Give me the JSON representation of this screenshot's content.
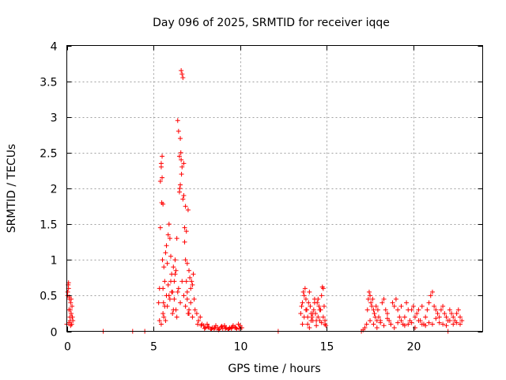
{
  "chart_data": {
    "type": "scatter",
    "title": "Day 096 of 2025, SRMTID for receiver iqqe",
    "xlabel": "GPS time / hours",
    "ylabel": "SRMTID / TECUs",
    "xlim": [
      0,
      24
    ],
    "ylim": [
      0,
      4
    ],
    "xticks": [
      0,
      5,
      10,
      15,
      20
    ],
    "yticks": [
      0,
      0.5,
      1,
      1.5,
      2,
      2.5,
      3,
      3.5,
      4
    ],
    "xtick_labels": [
      "0",
      "5",
      "10",
      "15",
      "20"
    ],
    "ytick_labels": [
      "0",
      "0.5",
      "1",
      "1.5",
      "2",
      "2.5",
      "3",
      "3.5",
      "4"
    ],
    "grid": true,
    "marker": "+",
    "color": "#ff0000",
    "series": [
      {
        "name": "SRMTID",
        "x": [
          0.0,
          0.05,
          0.08,
          0.1,
          0.12,
          0.15,
          0.18,
          0.2,
          0.22,
          0.25,
          0.28,
          0.3,
          0.32,
          0.35,
          0.05,
          0.1,
          0.15,
          0.2,
          0.25,
          0.3,
          0.12,
          0.22,
          2.1,
          3.8,
          4.5,
          5.3,
          5.35,
          5.4,
          5.45,
          5.5,
          5.55,
          5.6,
          5.65,
          5.7,
          5.75,
          5.8,
          5.85,
          5.9,
          5.95,
          6.0,
          6.05,
          6.1,
          6.15,
          6.2,
          6.25,
          6.3,
          6.35,
          6.4,
          6.45,
          6.5,
          6.55,
          6.6,
          6.65,
          6.7,
          6.75,
          6.8,
          6.85,
          6.9,
          6.95,
          7.0,
          7.05,
          7.1,
          7.15,
          7.2,
          7.25,
          7.3,
          7.35,
          7.4,
          5.4,
          5.45,
          5.5,
          5.48,
          5.52,
          5.55,
          5.58,
          5.6,
          5.7,
          5.8,
          5.9,
          6.0,
          6.1,
          6.2,
          6.3,
          6.4,
          6.5,
          6.52,
          6.55,
          6.58,
          6.6,
          6.62,
          6.65,
          6.7,
          6.75,
          6.8,
          6.85,
          6.9,
          6.95,
          7.0,
          7.05,
          5.35,
          5.45,
          5.55,
          5.65,
          5.75,
          5.85,
          5.95,
          6.05,
          6.15,
          6.25,
          6.35,
          6.45,
          6.55,
          6.65,
          6.75,
          6.85,
          6.95,
          7.05,
          7.15,
          7.25,
          7.5,
          7.6,
          7.7,
          7.8,
          7.9,
          8.0,
          8.1,
          8.2,
          8.3,
          8.4,
          8.5,
          8.6,
          8.7,
          8.8,
          8.9,
          9.0,
          9.1,
          9.2,
          9.3,
          9.4,
          9.5,
          9.6,
          9.7,
          9.8,
          9.9,
          10.0,
          10.1,
          7.55,
          7.75,
          7.95,
          8.15,
          8.35,
          8.55,
          8.75,
          8.95,
          9.15,
          9.35,
          9.55,
          9.75,
          9.95,
          12.2,
          13.5,
          13.55,
          13.6,
          13.65,
          13.7,
          13.75,
          13.8,
          13.85,
          13.9,
          13.95,
          14.0,
          14.05,
          14.1,
          14.15,
          14.2,
          14.25,
          14.3,
          14.35,
          14.4,
          14.45,
          14.5,
          14.55,
          14.6,
          14.65,
          14.7,
          14.75,
          14.8,
          14.85,
          14.9,
          14.95,
          13.6,
          13.7,
          13.8,
          13.9,
          14.0,
          14.1,
          14.2,
          14.3,
          14.4,
          14.5,
          14.6,
          14.7,
          14.8,
          14.9,
          17.0,
          17.1,
          17.2,
          17.3,
          17.35,
          17.4,
          17.45,
          17.5,
          17.55,
          17.6,
          17.65,
          17.7,
          17.75,
          17.8,
          17.85,
          17.9,
          17.95,
          18.0,
          18.1,
          18.2,
          18.3,
          18.4,
          18.5,
          18.6,
          18.7,
          18.8,
          18.9,
          19.0,
          19.1,
          19.2,
          19.3,
          19.4,
          19.5,
          19.6,
          19.7,
          19.8,
          19.9,
          20.0,
          20.1,
          20.2,
          20.3,
          20.4,
          20.5,
          20.6,
          20.7,
          20.8,
          20.9,
          21.0,
          21.1,
          21.2,
          21.3,
          21.4,
          21.5,
          21.6,
          21.7,
          21.8,
          21.9,
          22.0,
          22.1,
          22.2,
          22.3,
          22.4,
          22.5,
          22.6,
          22.7,
          22.8,
          17.5,
          17.7,
          17.9,
          18.1,
          18.3,
          18.5,
          18.7,
          18.9,
          19.1,
          19.3,
          19.5,
          19.7,
          19.9,
          20.1,
          20.3,
          20.5,
          20.7,
          20.9,
          21.1,
          21.3,
          21.5,
          21.7,
          21.9,
          22.1,
          22.3,
          22.5,
          22.7,
          22.0
        ],
        "y": [
          0.1,
          0.5,
          0.65,
          0.6,
          0.3,
          0.45,
          0.2,
          0.15,
          0.4,
          0.25,
          0.1,
          0.35,
          0.2,
          0.15,
          0.55,
          0.68,
          0.48,
          0.3,
          0.45,
          0.2,
          0.12,
          0.08,
          0.0,
          0.0,
          0.0,
          0.4,
          0.6,
          1.45,
          2.35,
          2.45,
          1.78,
          0.9,
          0.7,
          1.1,
          1.2,
          0.95,
          1.35,
          1.5,
          1.3,
          1.05,
          0.8,
          0.55,
          0.9,
          0.7,
          1.0,
          0.85,
          1.3,
          2.95,
          2.8,
          2.45,
          2.7,
          3.65,
          3.6,
          3.55,
          2.35,
          1.45,
          1.75,
          1.4,
          0.95,
          1.7,
          0.85,
          0.75,
          0.6,
          0.7,
          0.65,
          0.8,
          0.45,
          0.3,
          2.1,
          2.3,
          2.15,
          1.8,
          1.0,
          0.6,
          0.4,
          0.2,
          0.15,
          0.35,
          0.5,
          0.7,
          0.25,
          0.45,
          0.3,
          0.55,
          1.95,
          2.0,
          2.05,
          2.5,
          2.4,
          2.2,
          2.3,
          1.85,
          1.9,
          1.25,
          1.0,
          0.7,
          0.45,
          0.25,
          0.3,
          0.15,
          0.1,
          0.25,
          0.35,
          0.5,
          0.65,
          0.45,
          0.55,
          0.3,
          0.8,
          0.2,
          0.6,
          0.4,
          0.7,
          0.5,
          0.35,
          0.55,
          0.25,
          0.4,
          0.2,
          0.25,
          0.15,
          0.2,
          0.1,
          0.08,
          0.05,
          0.1,
          0.06,
          0.03,
          0.05,
          0.04,
          0.08,
          0.05,
          0.03,
          0.06,
          0.04,
          0.08,
          0.05,
          0.03,
          0.05,
          0.04,
          0.08,
          0.06,
          0.03,
          0.1,
          0.08,
          0.05,
          0.1,
          0.08,
          0.04,
          0.06,
          0.03,
          0.05,
          0.02,
          0.07,
          0.04,
          0.03,
          0.06,
          0.05,
          0.04,
          0.0,
          0.25,
          0.35,
          0.4,
          0.55,
          0.5,
          0.6,
          0.45,
          0.3,
          0.2,
          0.4,
          0.55,
          0.35,
          0.25,
          0.2,
          0.15,
          0.3,
          0.45,
          0.25,
          0.15,
          0.4,
          0.2,
          0.35,
          0.15,
          0.3,
          0.5,
          0.62,
          0.6,
          0.35,
          0.15,
          0.08,
          0.1,
          0.2,
          0.3,
          0.1,
          0.05,
          0.15,
          0.25,
          0.4,
          0.08,
          0.45,
          0.3,
          0.12,
          0.2,
          0.1,
          0.0,
          0.02,
          0.05,
          0.1,
          0.3,
          0.45,
          0.55,
          0.5,
          0.4,
          0.35,
          0.45,
          0.3,
          0.25,
          0.2,
          0.35,
          0.15,
          0.3,
          0.2,
          0.15,
          0.4,
          0.45,
          0.3,
          0.25,
          0.15,
          0.1,
          0.4,
          0.35,
          0.45,
          0.3,
          0.2,
          0.35,
          0.1,
          0.2,
          0.4,
          0.3,
          0.15,
          0.3,
          0.35,
          0.2,
          0.25,
          0.3,
          0.15,
          0.35,
          0.1,
          0.2,
          0.3,
          0.4,
          0.5,
          0.55,
          0.35,
          0.3,
          0.25,
          0.2,
          0.3,
          0.35,
          0.25,
          0.2,
          0.15,
          0.3,
          0.25,
          0.2,
          0.15,
          0.25,
          0.3,
          0.2,
          0.15,
          0.15,
          0.1,
          0.05,
          0.12,
          0.08,
          0.18,
          0.1,
          0.05,
          0.12,
          0.15,
          0.08,
          0.1,
          0.12,
          0.05,
          0.15,
          0.1,
          0.08,
          0.12,
          0.1,
          0.18,
          0.12,
          0.1,
          0.08,
          0.15,
          0.1,
          0.12,
          0.1,
          0.0
        ]
      }
    ]
  }
}
